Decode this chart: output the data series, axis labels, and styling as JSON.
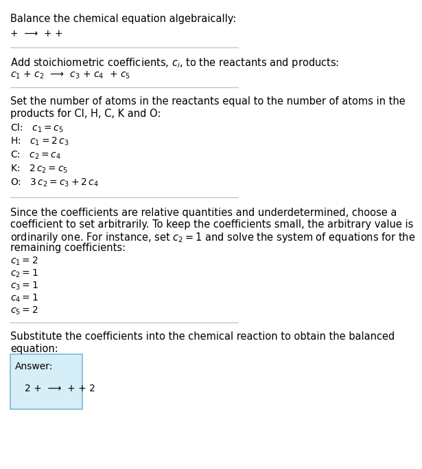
{
  "title": "Balance the chemical equation algebraically:",
  "line1": "+  ⟶  + +",
  "section2_title": "Add stoichiometric coefficients, $c_i$, to the reactants and products:",
  "line2": "$c_1$ + $c_2$  ⟶  $c_3$ + $c_4$  + $c_5$",
  "sec3_line1": "Set the number of atoms in the reactants equal to the number of atoms in the",
  "sec3_line2": "products for Cl, H, C, K and O:",
  "eq_lines": [
    "Cl:   $c_1 = c_5$",
    "H:   $c_1 = 2\\,c_3$",
    "C:   $c_2 = c_4$",
    "K:   $2\\,c_2 = c_5$",
    "O:   $3\\,c_2 = c_3 + 2\\,c_4$"
  ],
  "sec4_lines": [
    "Since the coefficients are relative quantities and underdetermined, choose a",
    "coefficient to set arbitrarily. To keep the coefficients small, the arbitrary value is",
    "ordinarily one. For instance, set $c_2 = 1$ and solve the system of equations for the",
    "remaining coefficients:"
  ],
  "coeff_lines": [
    "$c_1 = 2$",
    "$c_2 = 1$",
    "$c_3 = 1$",
    "$c_4 = 1$",
    "$c_5 = 2$"
  ],
  "sec5_line1": "Substitute the coefficients into the chemical reaction to obtain the balanced",
  "sec5_line2": "equation:",
  "answer_label": "Answer:",
  "answer_eq": "2 +  ⟶  + + 2",
  "bg_color": "#ffffff",
  "text_color": "#000000",
  "answer_box_color": "#d6eef8",
  "answer_box_edge": "#7ab8d9",
  "separator_color": "#bbbbbb",
  "font_size": 10,
  "font_size_title": 10.5
}
